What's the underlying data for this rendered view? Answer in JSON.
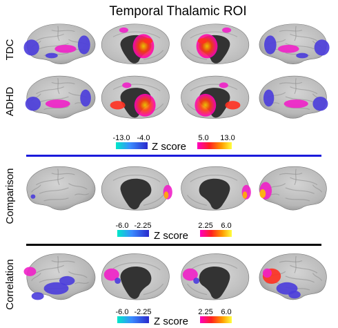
{
  "title": "Temporal Thalamic ROI",
  "rows": [
    {
      "label": "TDC"
    },
    {
      "label": "ADHD"
    },
    {
      "label": "Comparison"
    },
    {
      "label": "Correlation"
    }
  ],
  "legends": [
    {
      "neg_ticks": [
        "-13.0",
        "-4.0"
      ],
      "pos_ticks": [
        "5.0",
        "13.0"
      ],
      "title": "Z score"
    },
    {
      "neg_ticks": [
        "-6.0",
        "-2.25"
      ],
      "pos_ticks": [
        "2.25",
        "6.0"
      ],
      "title": "Z score"
    },
    {
      "neg_ticks": [
        "-6.0",
        "-2.25"
      ],
      "pos_ticks": [
        "2.25",
        "6.0"
      ],
      "title": "Z score"
    }
  ],
  "colors": {
    "divider_blue": "#1a1adb",
    "divider_black": "#000000",
    "brain_gray": "#b9b9b9",
    "medial_wall": "#333333",
    "neg_scale": [
      "#00e8c8",
      "#3a8cff",
      "#2a2acc"
    ],
    "pos_scale": [
      "#ff00c0",
      "#ff2020",
      "#ff9a00",
      "#ffff40"
    ]
  }
}
